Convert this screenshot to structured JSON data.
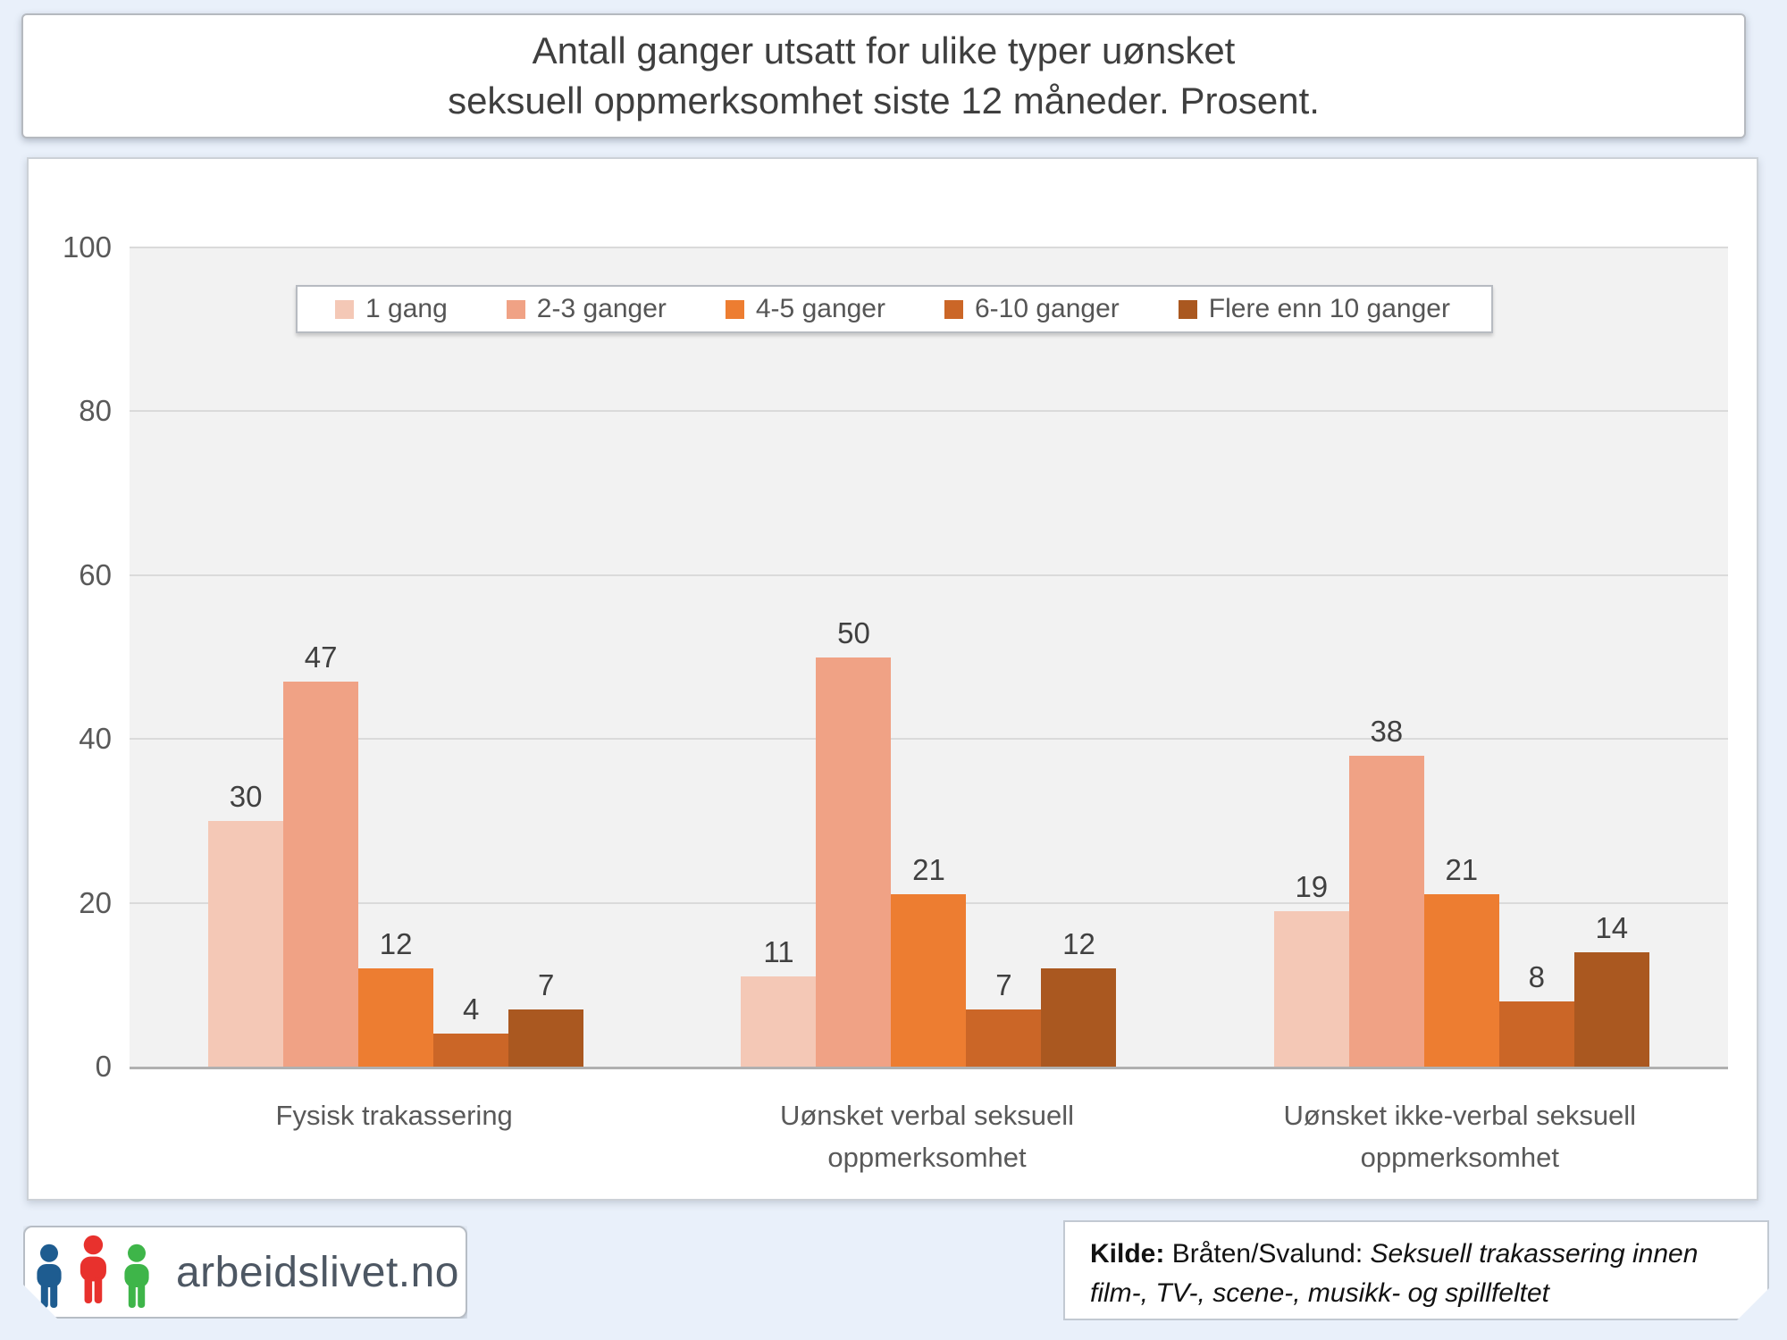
{
  "title": {
    "line1": "Antall ganger utsatt for ulike typer uønsket",
    "line2": "seksuell oppmerksomhet siste 12 måneder. Prosent."
  },
  "chart_data": {
    "type": "bar",
    "title": "Antall ganger utsatt for ulike typer uønsket seksuell oppmerksomhet siste 12 måneder. Prosent.",
    "categories": [
      "Fysisk trakassering",
      "Uønsket verbal seksuell oppmerksomhet",
      "Uønsket ikke-verbal seksuell oppmerksomhet"
    ],
    "series": [
      {
        "name": "1 gang",
        "color": "#f4c8b6",
        "values": [
          30,
          11,
          19
        ]
      },
      {
        "name": "2-3 ganger",
        "color": "#f0a285",
        "values": [
          47,
          50,
          38
        ]
      },
      {
        "name": "4-5 ganger",
        "color": "#ed7d31",
        "values": [
          12,
          21,
          21
        ]
      },
      {
        "name": "6-10 ganger",
        "color": "#cb6627",
        "values": [
          4,
          7,
          8
        ]
      },
      {
        "name": "Flere enn 10 ganger",
        "color": "#aa5820",
        "values": [
          7,
          12,
          14
        ]
      }
    ],
    "ylim": [
      0,
      100
    ],
    "yticks": [
      0,
      20,
      40,
      60,
      80,
      100
    ],
    "grid": true,
    "legend_position": "top-inside",
    "plot_background": "#f2f2f2"
  },
  "colors": {
    "page_background": "#e9f0fa",
    "gridline": "#dadada",
    "axis_line": "#b0b0b0",
    "tick_text": "#595959",
    "value_label_text": "#404040"
  },
  "source": {
    "label": "Kilde:",
    "author": "Bråten/Svalund:",
    "work_title": "Seksuell trakassering innen film-, TV-, scene-, musikk- og spillfeltet"
  },
  "logo": {
    "text": "arbeidslivet.no",
    "icon_colors": [
      "#1e5c90",
      "#e8312d",
      "#3eb549"
    ]
  }
}
